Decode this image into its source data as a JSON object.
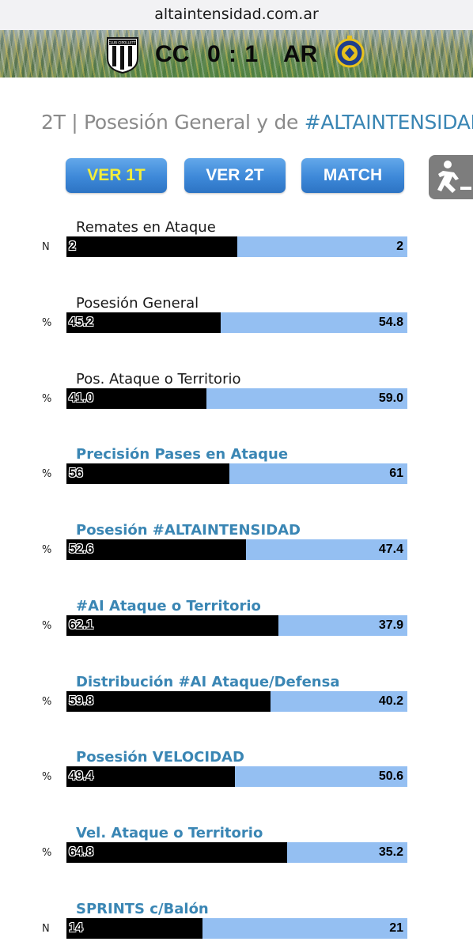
{
  "browser": {
    "url": "altaintensidad.com.ar"
  },
  "scoreboard": {
    "home_team": "CC",
    "away_team": "AR",
    "score": "0 : 1",
    "home_logo_text": "CLUB CIPOLLETTI",
    "banner_colors": {
      "pitch": "#5a7a4c",
      "crowd": "#f0c83c"
    }
  },
  "page": {
    "title_prefix": "2T | Posesión General y de ",
    "title_accent": "#ALTAINTENSIDAD",
    "accent_color": "#3a86b4"
  },
  "buttons": [
    {
      "label": "VER 1T",
      "active": true
    },
    {
      "label": "VER 2T",
      "active": false
    },
    {
      "label": "MATCH",
      "active": false
    }
  ],
  "side_tab": {
    "icon": "sprinter-icon"
  },
  "colors": {
    "home_bar": "#000000",
    "away_bar": "#94bff2",
    "button": "#3d88d8",
    "active_button_text": "#f3ee3b"
  },
  "stats": [
    {
      "label": "Remates en Ataque",
      "unit": "N",
      "home": "2",
      "away": "2",
      "home_fraction": 0.5,
      "accent": false
    },
    {
      "label": "Posesión General",
      "unit": "%",
      "home": "45.2",
      "away": "54.8",
      "home_fraction": 0.452,
      "accent": false
    },
    {
      "label": "Pos. Ataque o Territorio",
      "unit": "%",
      "home": "41.0",
      "away": "59.0",
      "home_fraction": 0.41,
      "accent": false
    },
    {
      "label": "Precisión Pases en Ataque",
      "unit": "%",
      "home": "56",
      "away": "61",
      "home_fraction": 0.479,
      "accent": true
    },
    {
      "label": "Posesión #ALTAINTENSIDAD",
      "unit": "%",
      "home": "52.6",
      "away": "47.4",
      "home_fraction": 0.526,
      "accent": true
    },
    {
      "label": "#AI Ataque o Territorio",
      "unit": "%",
      "home": "62.1",
      "away": "37.9",
      "home_fraction": 0.621,
      "accent": true
    },
    {
      "label": "Distribución #AI Ataque/Defensa",
      "unit": "%",
      "home": "59.8",
      "away": "40.2",
      "home_fraction": 0.598,
      "accent": true
    },
    {
      "label": "Posesión VELOCIDAD",
      "unit": "%",
      "home": "49.4",
      "away": "50.6",
      "home_fraction": 0.494,
      "accent": true
    },
    {
      "label": "Vel. Ataque o Territorio",
      "unit": "%",
      "home": "64.8",
      "away": "35.2",
      "home_fraction": 0.648,
      "accent": true
    },
    {
      "label": "SPRINTS c/Balón",
      "unit": "N",
      "home": "14",
      "away": "21",
      "home_fraction": 0.4,
      "accent": true
    }
  ]
}
